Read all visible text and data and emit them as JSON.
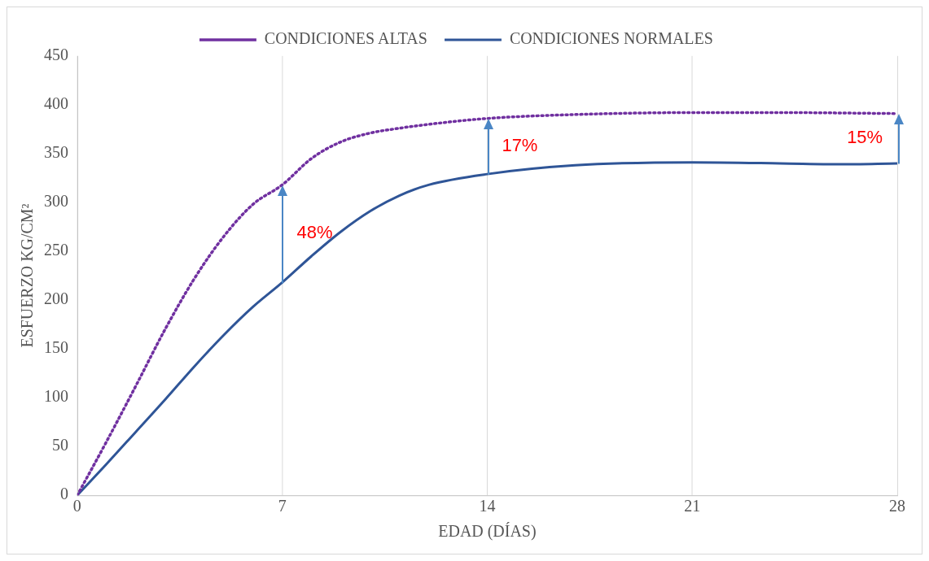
{
  "chart_data": {
    "type": "line",
    "xlabel": "EDAD (DÍAS)",
    "ylabel": "ESFUERZO KG/CM²",
    "xlim": [
      0,
      28
    ],
    "xticks": [
      0,
      7,
      14,
      21,
      28
    ],
    "ylim": [
      0,
      450
    ],
    "yticks": [
      0,
      50,
      100,
      150,
      200,
      250,
      300,
      350,
      400,
      450
    ],
    "grid": "x",
    "legend": "top",
    "marker": "none",
    "series": [
      {
        "name": "CONDICIONES ALTAS",
        "color": "#7030a0",
        "line_style": "dotted",
        "x": [
          0,
          1,
          2,
          3,
          4,
          5,
          6,
          7,
          8,
          9,
          10,
          11,
          12,
          14,
          17,
          21,
          24,
          28
        ],
        "values": [
          0,
          55,
          112,
          170,
          222,
          265,
          298,
          318,
          345,
          362,
          371,
          376,
          380,
          386,
          390,
          392,
          392,
          391
        ]
      },
      {
        "name": "CONDICIONES NORMALES",
        "color": "#2f5597",
        "line_style": "solid",
        "x": [
          0,
          1,
          2,
          3,
          4,
          5,
          6,
          7,
          8,
          9,
          10,
          11,
          12,
          14,
          17,
          21,
          24,
          26,
          28
        ],
        "values": [
          0,
          32,
          65,
          98,
          132,
          164,
          193,
          218,
          245,
          270,
          291,
          307,
          318,
          329,
          338,
          341,
          340,
          339,
          340
        ]
      }
    ],
    "annotations": [
      {
        "text": "48%",
        "x": 7,
        "y": 318
      },
      {
        "text": "17%",
        "x": 14,
        "y": 386
      },
      {
        "text": "15%",
        "x": 28,
        "y": 391
      }
    ]
  }
}
